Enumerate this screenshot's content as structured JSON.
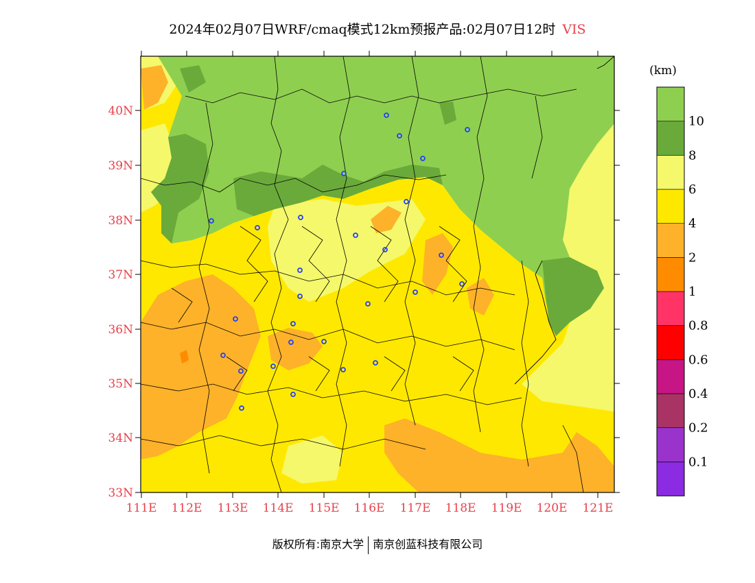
{
  "title": {
    "text": "2024年02月07日WRF/cmaq模式12km预报产品:02月07日12时",
    "variable": "VIS",
    "variable_color": "#e8404a"
  },
  "map": {
    "lon_labels": [
      "111E",
      "112E",
      "113E",
      "114E",
      "115E",
      "116E",
      "117E",
      "118E",
      "119E",
      "120E",
      "121E"
    ],
    "lat_labels": [
      "33N",
      "34N",
      "35N",
      "36N",
      "37N",
      "38N",
      "39N",
      "40N"
    ],
    "label_color": "#e8404a",
    "fill_colors": {
      "lt10": "#8fcf50",
      "8_10": "#6aaa3a",
      "6_8": "#f4f86a",
      "4_6": "#ffe800",
      "2_4": "#fdb22a",
      "1_2": "#ff8c00"
    },
    "station_marker_color": "#2040ff"
  },
  "colorbar": {
    "unit": "(km)",
    "colors": [
      "#8b2be2",
      "#9933cc",
      "#aa3366",
      "#c71585",
      "#ff0000",
      "#ff3366",
      "#ff8c00",
      "#fdb22a",
      "#ffe800",
      "#f4f86a",
      "#6aaa3a",
      "#8fcf50"
    ],
    "labels": [
      "0.1",
      "0.2",
      "0.4",
      "0.6",
      "0.8",
      "1",
      "2",
      "4",
      "6",
      "8",
      "10"
    ]
  },
  "copyright": {
    "left": "版权所有:南京大学",
    "right": "南京创蓝科技有限公司"
  }
}
